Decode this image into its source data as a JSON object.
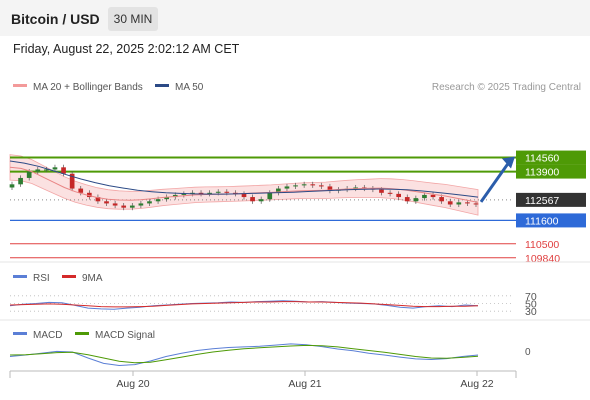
{
  "header": {
    "title": "Bitcoin / USD",
    "timeframe": "30 MIN",
    "datetime": "Friday, August 22, 2025 2:02:12 AM CET"
  },
  "chart_data": {
    "type": "candlestick",
    "instrument": "Bitcoin / USD",
    "timeframe": "30 MIN",
    "research_credit": "Research © 2025 Trading Central",
    "legend_top": [
      {
        "name": "MA 20 + Bollinger Bands",
        "color": "#f39a9a"
      },
      {
        "name": "MA 50",
        "color": "#2c4a86"
      }
    ],
    "price_axis": {
      "min": 109500,
      "max": 116800
    },
    "x_ticks": [
      "Aug 20",
      "Aug 21",
      "Aug 22"
    ],
    "levels": [
      {
        "value": 114560,
        "label": "114560",
        "kind": "resistance",
        "color": "#4e9a06"
      },
      {
        "value": 113900,
        "label": "113900",
        "kind": "resistance",
        "color": "#4e9a06"
      },
      {
        "value": 112567,
        "label": "112567",
        "kind": "last",
        "color": "#333333"
      },
      {
        "value": 111600,
        "label": "111600",
        "kind": "pivot",
        "color": "#2e6ad8"
      },
      {
        "value": 110500,
        "label": "110500",
        "kind": "support",
        "color": "#e04040"
      },
      {
        "value": 109840,
        "label": "109840",
        "kind": "support",
        "color": "#e04040"
      }
    ],
    "forecast_arrow": {
      "from": 112567,
      "to": 114560,
      "color": "#2b5dab"
    },
    "close_series": [
      113300,
      113600,
      113900,
      114000,
      114000,
      114100,
      113800,
      113100,
      112900,
      112700,
      112500,
      112400,
      112300,
      112200,
      112300,
      112400,
      112500,
      112600,
      112700,
      112800,
      112850,
      112900,
      112850,
      112900,
      112950,
      112900,
      112850,
      112700,
      112500,
      112600,
      112900,
      113100,
      113200,
      113250,
      113300,
      113250,
      113200,
      113000,
      113050,
      113100,
      113150,
      113100,
      113050,
      112900,
      112850,
      112700,
      112500,
      112650,
      112800,
      112700,
      112500,
      112350,
      112450,
      112400,
      112350
    ],
    "ma20": [
      114100,
      114050,
      113900,
      113650,
      113400,
      113150,
      112950,
      112800,
      112680,
      112600,
      112560,
      112550,
      112570,
      112620,
      112680,
      112720,
      112760,
      112800,
      112820,
      112830,
      112840,
      112860,
      112880,
      112900,
      112920,
      112950,
      112980,
      113000,
      113010,
      113020,
      113050,
      113080,
      113100,
      113110,
      113120,
      113100,
      113050,
      112980,
      112900,
      112820,
      112750,
      112650,
      112550,
      112450
    ],
    "ma50": [
      114400,
      114300,
      114150,
      113950,
      113750,
      113550,
      113380,
      113230,
      113120,
      113020,
      112950,
      112900,
      112870,
      112850,
      112840,
      112840,
      112850,
      112870,
      112890,
      112910,
      112930,
      112960,
      112990,
      113020,
      113050,
      113070,
      113080,
      113070,
      113040,
      112990,
      112930,
      112860,
      112780,
      112700
    ],
    "rsi": {
      "legend": [
        {
          "name": "RSI",
          "color": "#5b7fd6"
        },
        {
          "name": "9MA",
          "color": "#d42a2a"
        }
      ],
      "levels": [
        "70",
        "50",
        "30"
      ],
      "values": [
        44,
        48,
        50,
        53,
        52,
        45,
        38,
        36,
        35,
        38,
        40,
        44,
        46,
        48,
        50,
        51,
        52,
        54,
        53,
        55,
        56,
        57,
        56,
        54,
        55,
        53,
        51,
        50,
        49,
        45,
        40,
        38,
        42,
        44,
        42,
        46,
        44
      ],
      "ma9": [
        46,
        47,
        48,
        49,
        48,
        46,
        44,
        42,
        41,
        41,
        42,
        43,
        45,
        47,
        49,
        50,
        51,
        52,
        53,
        54,
        54,
        55,
        55,
        54,
        54,
        53,
        52,
        51,
        49,
        47,
        45,
        43,
        42,
        42,
        43,
        43,
        44
      ]
    },
    "macd": {
      "legend": [
        {
          "name": "MACD",
          "color": "#5b7fd6"
        },
        {
          "name": "MACD Signal",
          "color": "#4e9a06"
        }
      ],
      "zero_label": "0",
      "macd": [
        -150,
        -100,
        -40,
        20,
        0,
        -200,
        -380,
        -450,
        -420,
        -300,
        -150,
        -40,
        50,
        110,
        150,
        170,
        190,
        230,
        270,
        240,
        180,
        100,
        40,
        -40,
        -100,
        -170,
        -230,
        -250,
        -220,
        -150,
        -100
      ],
      "signal": [
        -100,
        -90,
        -60,
        -20,
        -10,
        -90,
        -200,
        -310,
        -360,
        -340,
        -260,
        -170,
        -80,
        0,
        60,
        110,
        140,
        170,
        200,
        220,
        210,
        170,
        110,
        50,
        -10,
        -80,
        -150,
        -200,
        -210,
        -180,
        -140
      ]
    }
  }
}
